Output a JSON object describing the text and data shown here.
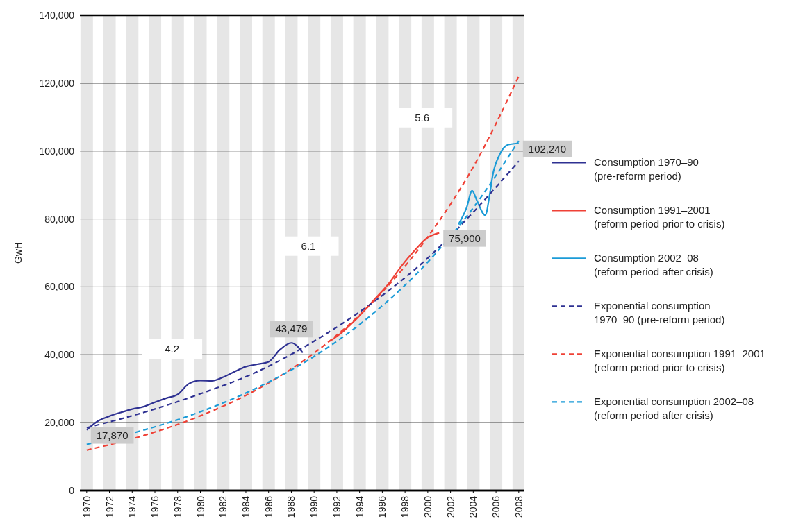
{
  "chart_data": {
    "type": "line",
    "ylabel": "GwH",
    "xlim": [
      1969.4,
      2008.5
    ],
    "xticks": [
      1970,
      1972,
      1974,
      1976,
      1978,
      1980,
      1982,
      1984,
      1986,
      1988,
      1990,
      1992,
      1994,
      1996,
      1998,
      2000,
      2002,
      2004,
      2006,
      2008
    ],
    "ylim": [
      0,
      140000
    ],
    "yticks": [
      0,
      {
        "value": 20000,
        "label": "20,000"
      },
      {
        "value": 40000,
        "label": "40,000"
      },
      {
        "value": 60000,
        "label": "60,000"
      },
      {
        "value": 80000,
        "label": "80,000"
      },
      {
        "value": 100000,
        "label": "100,000"
      },
      {
        "value": 120000,
        "label": "120,000"
      },
      {
        "value": 140000,
        "label": "140,000"
      }
    ],
    "grid": "y",
    "legend": "right",
    "bands": [
      {
        "axis": "x",
        "from": 1969.45,
        "to": 1970.55,
        "color": "#e6e6e6"
      },
      {
        "axis": "x",
        "from": 1971.45,
        "to": 1972.55,
        "color": "#e6e6e6"
      },
      {
        "axis": "x",
        "from": 1973.45,
        "to": 1974.55,
        "color": "#e6e6e6"
      },
      {
        "axis": "x",
        "from": 1975.45,
        "to": 1976.55,
        "color": "#e6e6e6"
      },
      {
        "axis": "x",
        "from": 1977.45,
        "to": 1978.55,
        "color": "#e6e6e6"
      },
      {
        "axis": "x",
        "from": 1979.45,
        "to": 1980.55,
        "color": "#e6e6e6"
      },
      {
        "axis": "x",
        "from": 1981.45,
        "to": 1982.55,
        "color": "#e6e6e6"
      },
      {
        "axis": "x",
        "from": 1983.45,
        "to": 1984.55,
        "color": "#e6e6e6"
      },
      {
        "axis": "x",
        "from": 1985.45,
        "to": 1986.55,
        "color": "#e6e6e6"
      },
      {
        "axis": "x",
        "from": 1987.45,
        "to": 1988.55,
        "color": "#e6e6e6"
      },
      {
        "axis": "x",
        "from": 1989.45,
        "to": 1990.55,
        "color": "#e6e6e6"
      },
      {
        "axis": "x",
        "from": 1991.45,
        "to": 1992.55,
        "color": "#e6e6e6"
      },
      {
        "axis": "x",
        "from": 1993.45,
        "to": 1994.55,
        "color": "#e6e6e6"
      },
      {
        "axis": "x",
        "from": 1995.45,
        "to": 1996.55,
        "color": "#e6e6e6"
      },
      {
        "axis": "x",
        "from": 1997.45,
        "to": 1998.55,
        "color": "#e6e6e6"
      },
      {
        "axis": "x",
        "from": 1999.45,
        "to": 2000.55,
        "color": "#e6e6e6"
      },
      {
        "axis": "x",
        "from": 2001.45,
        "to": 2002.55,
        "color": "#e6e6e6"
      },
      {
        "axis": "x",
        "from": 2003.45,
        "to": 2004.55,
        "color": "#e6e6e6"
      },
      {
        "axis": "x",
        "from": 2005.45,
        "to": 2006.55,
        "color": "#e6e6e6"
      },
      {
        "axis": "x",
        "from": 2007.45,
        "to": 2008.5,
        "color": "#e6e6e6"
      }
    ],
    "annotations": [
      {
        "text": "4.2",
        "x": 1977.5,
        "y": 41700
      },
      {
        "text": "6.1",
        "x": 1989.5,
        "y": 72000
      },
      {
        "text": "5.6",
        "x": 1999.5,
        "y": 109800
      }
    ],
    "series": [
      {
        "name": "Consumption 1970–90\n(pre-reform period)",
        "color": "#2e3192",
        "line_style": "solid",
        "x": [
          1970,
          1971,
          1972,
          1973,
          1974,
          1975,
          1976,
          1977,
          1978,
          1979,
          1980,
          1981,
          1982,
          1983,
          1984,
          1985,
          1986,
          1987,
          1988,
          1989
        ],
        "values": [
          17870,
          20500,
          21900,
          23000,
          24000,
          24700,
          26000,
          27200,
          28300,
          31500,
          32400,
          32300,
          33400,
          35000,
          36500,
          37200,
          37900,
          41500,
          43479,
          40600
        ],
        "value_labels": [
          "17,870",
          null,
          null,
          null,
          null,
          null,
          null,
          null,
          null,
          null,
          null,
          null,
          null,
          null,
          null,
          null,
          null,
          null,
          "43,479",
          null
        ]
      },
      {
        "name": "Consumption 1991–2001\n(reform period prior to crisis)",
        "color": "#ef4136",
        "line_style": "solid",
        "x": [
          1991.4,
          1992.6,
          1994,
          1995.2,
          1996.5,
          1997.7,
          1998.9,
          1999.9,
          2001
        ],
        "values": [
          44000,
          47000,
          51500,
          55900,
          60700,
          66200,
          70900,
          74300,
          75900
        ],
        "value_labels": [
          null,
          null,
          null,
          null,
          null,
          null,
          null,
          null,
          "75,900"
        ]
      },
      {
        "name": "Consumption 2002–08\n(reform period after crisis)",
        "color": "#1b9bd7",
        "line_style": "solid",
        "x": [
          2002.7,
          2003.4,
          2003.9,
          2004.3,
          2005.05,
          2005.45,
          2005.7,
          2006.3,
          2007.1,
          2008
        ],
        "values": [
          78400,
          83200,
          88300,
          85600,
          81100,
          87300,
          92700,
          98800,
          101900,
          102240
        ],
        "value_labels": [
          null,
          null,
          null,
          null,
          null,
          null,
          null,
          null,
          null,
          "102,240"
        ]
      },
      {
        "name": "Exponential consumption\n1970–90 (pre-reform period)",
        "color": "#2e3192",
        "line_style": "dashed",
        "x": [
          1970,
          1975,
          1980,
          1985,
          1990,
          1995,
          2000,
          2004,
          2008
        ],
        "values": [
          18500,
          23000,
          28500,
          35000,
          44000,
          55000,
          68500,
          82000,
          97000
        ]
      },
      {
        "name": "Exponential consumption 1991–2001\n(reform period prior to crisis)",
        "color": "#ef4136",
        "line_style": "dashed",
        "x": [
          1970,
          1975,
          1980,
          1985,
          1990,
          1995,
          2000,
          2004,
          2008
        ],
        "values": [
          11900,
          16200,
          22000,
          29800,
          40500,
          55000,
          74700,
          95300,
          122000
        ]
      },
      {
        "name": "Exponential consumption 2002–08\n(reform period after crisis)",
        "color": "#1b9bd7",
        "line_style": "dashed",
        "x": [
          1970,
          1975,
          1980,
          1985,
          1990,
          1995,
          2000,
          2004,
          2008
        ],
        "values": [
          13600,
          17800,
          23200,
          30300,
          39500,
          51600,
          67300,
          83300,
          103000
        ]
      }
    ]
  }
}
